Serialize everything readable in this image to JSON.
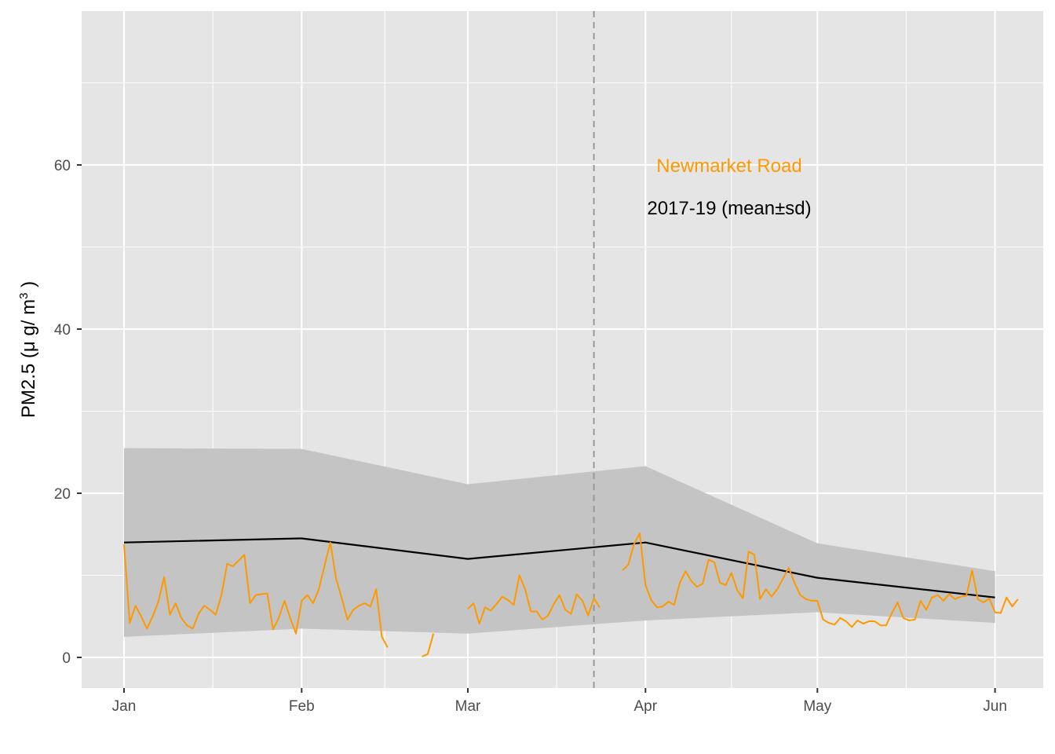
{
  "chart_data": {
    "type": "line",
    "title": "",
    "xlabel": "",
    "ylabel": "PM2.5 (μ g/ m³ )",
    "ylabel_parts": {
      "main": "PM2.5 (μ g/ m",
      "sup": "3",
      "tail": " )"
    },
    "x_ticks": [
      "Jan",
      "Feb",
      "Mar",
      "Apr",
      "May",
      "Jun"
    ],
    "y_ticks": [
      "0",
      "20",
      "40",
      "60"
    ],
    "ylim": [
      -3.5,
      79
    ],
    "xlim": [
      "2020-12-25",
      "2020-06-07"
    ],
    "grid": true,
    "annotations": {
      "site": "Newmarket Road",
      "baseline": "2017-19 (mean±sd)",
      "lockdown_line_date": "2020-03-23"
    },
    "colors": {
      "panel": "#e5e5e5",
      "grid": "#ffffff",
      "ribbon": "#c4c4c4",
      "mean_line": "#000000",
      "site_line": "#ff9900",
      "vline": "#999999"
    },
    "baseline_mean": [
      {
        "month": "Jan",
        "value": 14.0
      },
      {
        "month": "Feb",
        "value": 14.5
      },
      {
        "month": "Mar",
        "value": 12.0
      },
      {
        "month": "Apr",
        "value": 14.0
      },
      {
        "month": "May",
        "value": 9.7
      },
      {
        "month": "Jun",
        "value": 7.3
      }
    ],
    "baseline_sd_band": [
      {
        "month": "Jan",
        "low": 2.5,
        "high": 25.5
      },
      {
        "month": "Feb",
        "low": 3.5,
        "high": 25.4
      },
      {
        "month": "Mar",
        "low": 2.9,
        "high": 21.1
      },
      {
        "month": "Apr",
        "low": 4.5,
        "high": 23.3
      },
      {
        "month": "May",
        "low": 5.5,
        "high": 13.9
      },
      {
        "month": "Jun",
        "low": 4.2,
        "high": 10.5
      }
    ],
    "series": [
      {
        "name": "Newmarket Road",
        "start_date": "2020-01-01",
        "values": [
          13.8,
          4.2,
          6.3,
          5.0,
          3.5,
          5.0,
          6.8,
          9.8,
          5.2,
          6.6,
          4.8,
          3.9,
          3.5,
          5.3,
          6.3,
          5.8,
          5.2,
          7.6,
          11.4,
          11.1,
          11.8,
          12.5,
          6.6,
          7.6,
          7.7,
          7.8,
          3.4,
          4.8,
          6.9,
          4.8,
          2.9,
          6.9,
          7.6,
          6.6,
          8.3,
          11.2,
          14.0,
          9.6,
          7.2,
          4.6,
          5.8,
          6.3,
          6.6,
          6.2,
          8.3,
          2.5,
          1.2,
          null,
          null,
          null,
          null,
          null,
          0.1,
          0.4,
          2.9,
          null,
          null,
          null,
          null,
          null,
          5.9,
          6.6,
          4.1,
          6.1,
          5.7,
          6.5,
          7.4,
          7.0,
          6.4,
          10.0,
          8.3,
          5.6,
          5.6,
          4.6,
          5.1,
          6.5,
          7.6,
          5.8,
          5.3,
          7.7,
          6.9,
          5.1,
          7.2,
          6.1,
          null,
          null,
          null,
          10.6,
          11.3,
          13.8,
          15.1,
          8.8,
          7.0,
          6.1,
          6.2,
          6.8,
          6.4,
          9.1,
          10.5,
          9.3,
          8.6,
          9.0,
          11.9,
          11.6,
          9.1,
          8.8,
          10.3,
          8.2,
          7.2,
          12.9,
          12.5,
          7.1,
          8.3,
          7.4,
          8.3,
          9.6,
          10.9,
          9.1,
          7.6,
          7.1,
          6.9,
          6.9,
          4.6,
          4.2,
          4.0,
          4.8,
          4.4,
          3.7,
          4.5,
          4.1,
          4.4,
          4.4,
          3.9,
          3.9,
          5.4,
          6.7,
          4.8,
          4.5,
          4.6,
          6.9,
          5.8,
          7.3,
          7.6,
          6.9,
          7.7,
          7.1,
          7.4,
          7.5,
          10.6,
          7.1,
          6.7,
          7.2,
          5.5,
          5.4,
          7.3,
          6.2,
          7.1
        ]
      }
    ]
  }
}
